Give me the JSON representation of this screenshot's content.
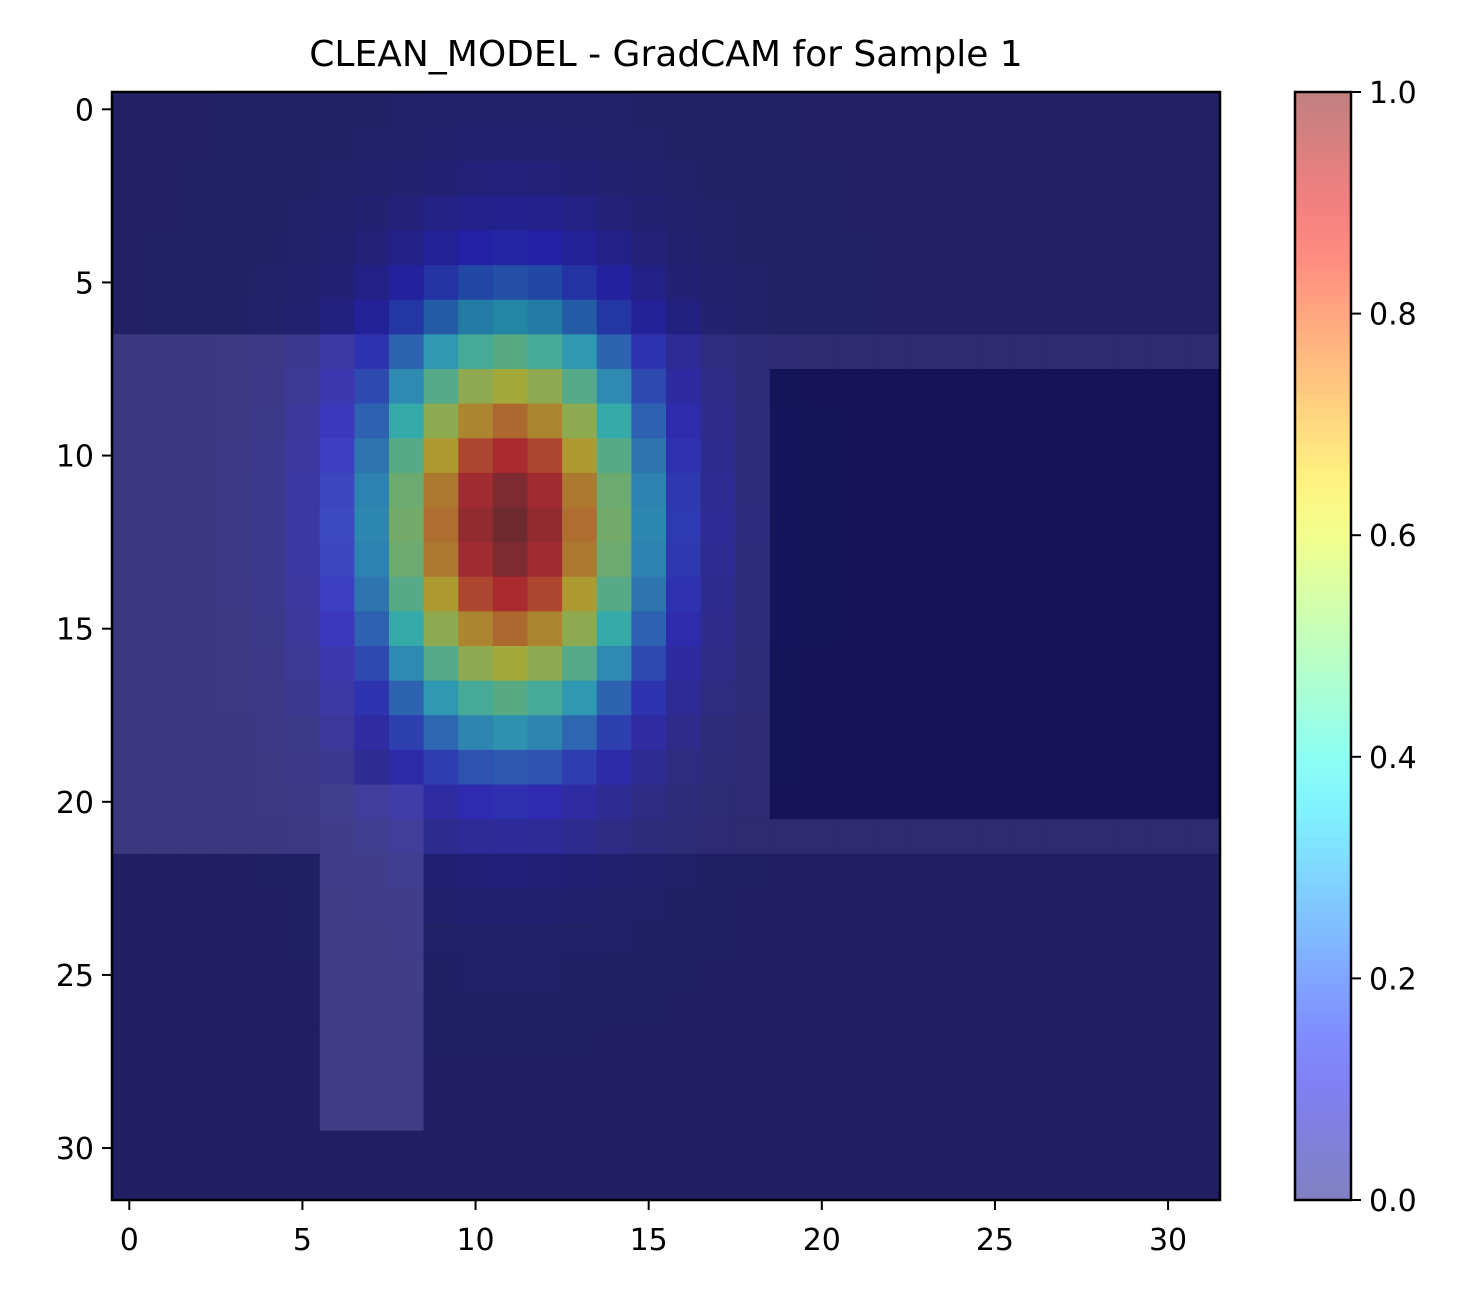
{
  "chart_data": {
    "type": "heatmap",
    "title": "CLEAN_MODEL - GradCAM for Sample 1",
    "xlabel": "",
    "ylabel": "",
    "grid_size": [
      32,
      32
    ],
    "xlim": [
      -0.5,
      31.5
    ],
    "ylim": [
      31.5,
      -0.5
    ],
    "x_ticks": [
      0,
      5,
      10,
      15,
      20,
      25,
      30
    ],
    "y_ticks": [
      0,
      5,
      10,
      15,
      20,
      25,
      30
    ],
    "colormap": "jet",
    "overlay_alpha": 0.5,
    "base_image": "grayscale sample, dark top region and dark lower-right region",
    "activation_peak": {
      "row": 12,
      "col": 11,
      "value": 1.0
    },
    "activation_spread_rows": 4.0,
    "activation_spread_cols": 2.6,
    "colorbar": {
      "range": [
        0.0,
        1.0
      ],
      "ticks": [
        0.0,
        0.2,
        0.4,
        0.6,
        0.8,
        1.0
      ],
      "tick_labels": [
        "0.0",
        "0.2",
        "0.4",
        "0.6",
        "0.8",
        "1.0"
      ],
      "placement": "right"
    }
  }
}
